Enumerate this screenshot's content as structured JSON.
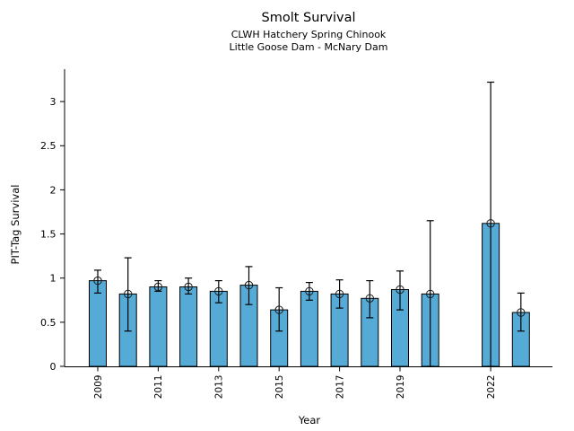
{
  "figure": {
    "title": "Smolt Survival",
    "subtitle1": "CLWH Hatchery Spring Chinook",
    "subtitle2": "Little Goose Dam - McNary Dam"
  },
  "chart_data": {
    "type": "bar",
    "title": "Smolt Survival",
    "subtitle": [
      "CLWH Hatchery Spring Chinook",
      "Little Goose Dam - McNary Dam"
    ],
    "xlabel": "Year",
    "ylabel": "PIT-Tag Survival",
    "ylim": [
      0,
      3.37
    ],
    "x_range": [
      2009,
      2023
    ],
    "missing_years": [
      2021
    ],
    "grid": false,
    "legend": null,
    "yticks": [
      0,
      0.5,
      1,
      1.5,
      2,
      2.5,
      3
    ],
    "ytick_labels": [
      "0",
      "0.5",
      "1",
      "1.5",
      "2",
      "2.5",
      "3"
    ],
    "xticks": [
      2009,
      2011,
      2013,
      2015,
      2017,
      2019,
      2022
    ],
    "bar_color": "#56ABD6",
    "bar_edge_color": "#000000",
    "error_color": "#000000",
    "marker": "open-circle",
    "points": [
      {
        "year": 2009,
        "value": 0.97,
        "ci_low": 0.83,
        "ci_high": 1.09
      },
      {
        "year": 2010,
        "value": 0.82,
        "ci_low": 0.4,
        "ci_high": 1.23
      },
      {
        "year": 2011,
        "value": 0.9,
        "ci_low": 0.85,
        "ci_high": 0.97
      },
      {
        "year": 2012,
        "value": 0.9,
        "ci_low": 0.82,
        "ci_high": 1.0
      },
      {
        "year": 2013,
        "value": 0.85,
        "ci_low": 0.72,
        "ci_high": 0.97
      },
      {
        "year": 2014,
        "value": 0.92,
        "ci_low": 0.7,
        "ci_high": 1.13
      },
      {
        "year": 2015,
        "value": 0.64,
        "ci_low": 0.4,
        "ci_high": 0.89
      },
      {
        "year": 2016,
        "value": 0.85,
        "ci_low": 0.75,
        "ci_high": 0.95
      },
      {
        "year": 2017,
        "value": 0.82,
        "ci_low": 0.66,
        "ci_high": 0.98
      },
      {
        "year": 2018,
        "value": 0.77,
        "ci_low": 0.55,
        "ci_high": 0.97
      },
      {
        "year": 2019,
        "value": 0.87,
        "ci_low": 0.64,
        "ci_high": 1.08
      },
      {
        "year": 2020,
        "value": 0.82,
        "ci_low": 0.0,
        "ci_high": 1.65
      },
      {
        "year": 2022,
        "value": 1.62,
        "ci_low": 0.0,
        "ci_high": 3.22
      },
      {
        "year": 2023,
        "value": 0.61,
        "ci_low": 0.4,
        "ci_high": 0.83
      }
    ]
  }
}
